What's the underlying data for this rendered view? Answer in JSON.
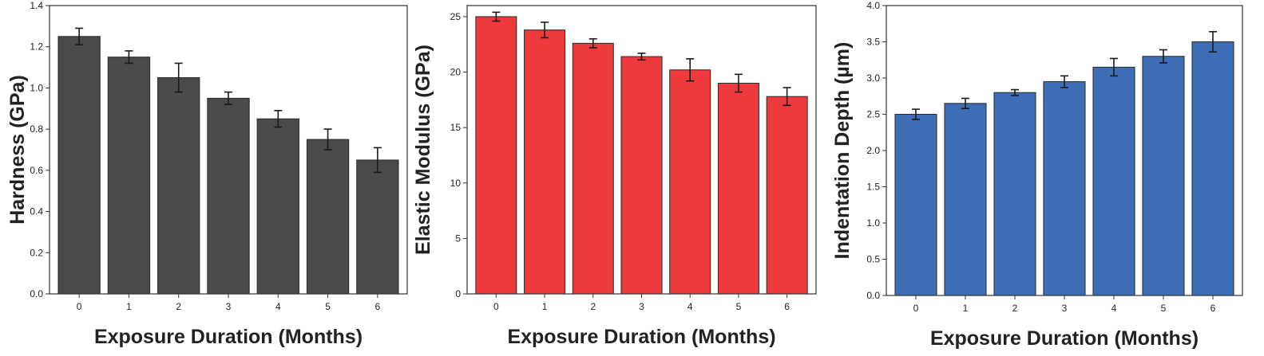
{
  "chart_data": [
    {
      "type": "bar",
      "color": "#4a4a4a",
      "categories": [
        "0",
        "1",
        "2",
        "3",
        "4",
        "5",
        "6"
      ],
      "values": [
        1.25,
        1.15,
        1.05,
        0.95,
        0.85,
        0.75,
        0.65
      ],
      "errors": [
        0.04,
        0.03,
        0.07,
        0.03,
        0.04,
        0.05,
        0.06
      ],
      "xlabel": "Exposure Duration (Months)",
      "ylabel": "Hardness (GPa)",
      "ylim": [
        0,
        1.4
      ],
      "yticks": [
        "0.0",
        "0.2",
        "0.4",
        "0.6",
        "0.8",
        "1.0",
        "1.2",
        "1.4"
      ],
      "grid": false,
      "legend": "none"
    },
    {
      "type": "bar",
      "color": "#ee3a3d",
      "categories": [
        "0",
        "1",
        "2",
        "3",
        "4",
        "5",
        "6"
      ],
      "values": [
        25.0,
        23.8,
        22.6,
        21.4,
        20.2,
        19.0,
        17.8
      ],
      "errors": [
        0.4,
        0.7,
        0.4,
        0.3,
        1.0,
        0.8,
        0.8
      ],
      "xlabel": "Exposure Duration (Months)",
      "ylabel": "Elastic Modulus (GPa)",
      "ylim": [
        0,
        26
      ],
      "yticks": [
        "0",
        "5",
        "10",
        "15",
        "20",
        "25"
      ],
      "grid": false,
      "legend": "none"
    },
    {
      "type": "bar",
      "color": "#3d6db5",
      "categories": [
        "0",
        "1",
        "2",
        "3",
        "4",
        "5",
        "6"
      ],
      "values": [
        2.5,
        2.65,
        2.8,
        2.95,
        3.15,
        3.3,
        3.5
      ],
      "errors": [
        0.07,
        0.07,
        0.04,
        0.08,
        0.12,
        0.09,
        0.14
      ],
      "xlabel": "Exposure Duration (Months)",
      "ylabel": "Indentation Depth (µm)",
      "ylim": [
        0,
        4.0
      ],
      "yticks": [
        "0.0",
        "0.5",
        "1.0",
        "1.5",
        "2.0",
        "2.5",
        "3.0",
        "3.5",
        "4.0"
      ],
      "grid": false,
      "legend": "none"
    }
  ]
}
